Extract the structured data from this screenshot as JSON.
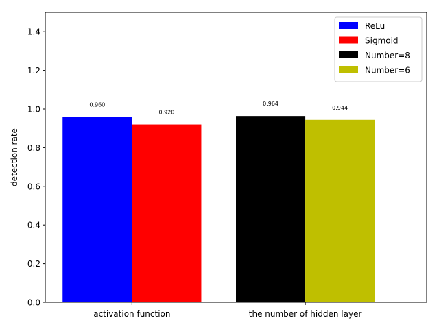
{
  "chart_data": {
    "type": "bar",
    "title": "",
    "xlabel": "",
    "ylabel": "detection rate",
    "ylim": [
      0,
      1.5
    ],
    "yticks": [
      0.0,
      0.2,
      0.4,
      0.6,
      0.8,
      1.0,
      1.2,
      1.4
    ],
    "ytick_labels": [
      "0.0",
      "0.2",
      "0.4",
      "0.6",
      "0.8",
      "1.0",
      "1.2",
      "1.4"
    ],
    "grid": false,
    "legend_position": "top-right",
    "groups": [
      {
        "label": "activation function",
        "bars": [
          {
            "name": "ReLu",
            "value": 0.96,
            "value_label": "0.960",
            "color": "#0000ff"
          },
          {
            "name": "Sigmoid",
            "value": 0.92,
            "value_label": "0.920",
            "color": "#ff0000"
          }
        ]
      },
      {
        "label": "the number of hidden layer",
        "bars": [
          {
            "name": "Number=8",
            "value": 0.964,
            "value_label": "0.964",
            "color": "#000000"
          },
          {
            "name": "Number=6",
            "value": 0.944,
            "value_label": "0.944",
            "color": "#bfbf00"
          }
        ]
      }
    ],
    "legend": [
      {
        "name": "ReLu",
        "color": "#0000ff"
      },
      {
        "name": "Sigmoid",
        "color": "#ff0000"
      },
      {
        "name": "Number=8",
        "color": "#000000"
      },
      {
        "name": "Number=6",
        "color": "#bfbf00"
      }
    ]
  }
}
